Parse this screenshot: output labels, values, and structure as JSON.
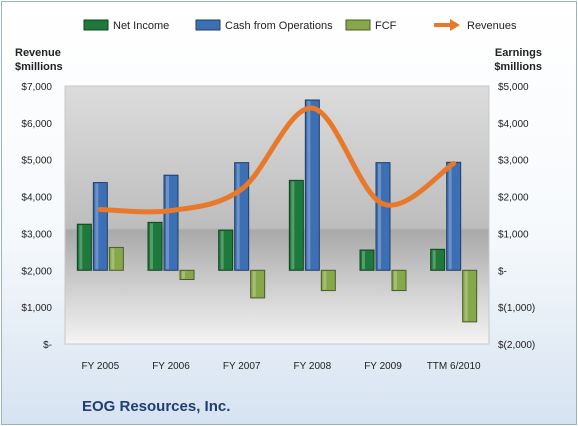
{
  "company": "EOG Resources, Inc.",
  "chart_data": {
    "type": "bar",
    "categories": [
      "FY 2005",
      "FY 2006",
      "FY 2007",
      "FY 2008",
      "FY 2009",
      "TTM 6/2010"
    ],
    "series": [
      {
        "name": "Net Income",
        "axis": "right",
        "kind": "bar",
        "color": "#1e7a3a",
        "values": [
          1250,
          1300,
          1090,
          2440,
          550,
          570
        ]
      },
      {
        "name": "Cash from Operations",
        "axis": "right",
        "kind": "bar",
        "color": "#3c6fb3",
        "values": [
          2380,
          2580,
          2920,
          4620,
          2920,
          2930
        ]
      },
      {
        "name": "FCF",
        "axis": "right",
        "kind": "bar",
        "color": "#86a84a",
        "values": [
          620,
          -250,
          -750,
          -550,
          -550,
          -1400
        ]
      },
      {
        "name": "Revenues",
        "axis": "left",
        "kind": "line",
        "color": "#e8782a",
        "values": [
          3650,
          3620,
          4200,
          6400,
          3800,
          4900
        ]
      }
    ],
    "left_axis": {
      "title_lines": [
        "Revenue",
        "$millions"
      ],
      "ylim": [
        0,
        7000
      ],
      "ticks": [
        0,
        1000,
        2000,
        3000,
        4000,
        5000,
        6000,
        7000
      ],
      "tick_labels": [
        "$-",
        "$1,000",
        "$2,000",
        "$3,000",
        "$4,000",
        "$5,000",
        "$6,000",
        "$7,000"
      ]
    },
    "right_axis": {
      "title_lines": [
        "Earnings",
        "$millions"
      ],
      "ylim": [
        -2000,
        5000
      ],
      "ticks": [
        -2000,
        -1000,
        0,
        1000,
        2000,
        3000,
        4000,
        5000
      ],
      "tick_labels": [
        "$(2,000)",
        "$(1,000)",
        "$-",
        "$1,000",
        "$2,000",
        "$3,000",
        "$4,000",
        "$5,000"
      ]
    },
    "legend_position": "top",
    "grid": false
  }
}
